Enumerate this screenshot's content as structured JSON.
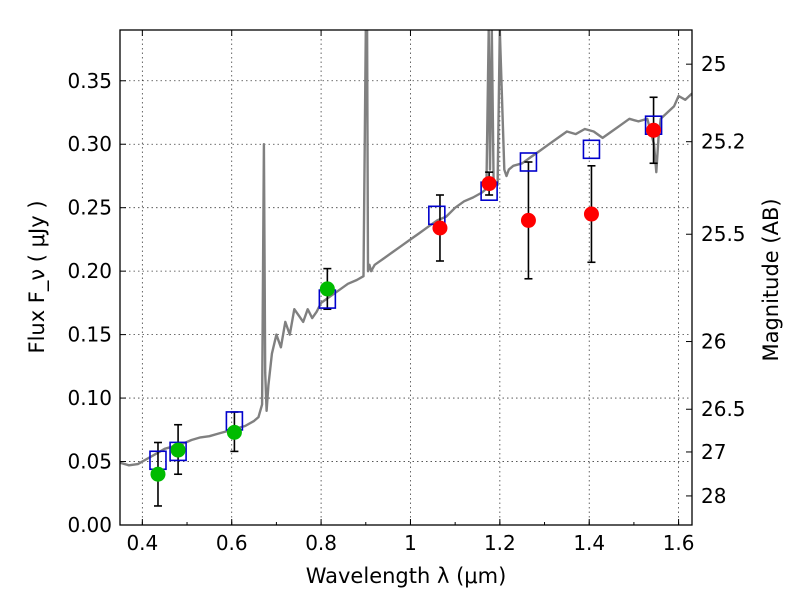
{
  "chart_data": {
    "type": "scatter",
    "xlabel": "Wavelength  λ (μm)",
    "ylabel": "Flux  F_ν  ( μJy )",
    "ylabel_right": "Magnitude (AB)",
    "xlim": [
      0.35,
      1.63
    ],
    "ylim": [
      0.0,
      0.39
    ],
    "grid": true,
    "x_ticks": [
      {
        "value": 0.4,
        "label": "0.4"
      },
      {
        "value": 0.6,
        "label": "0.6"
      },
      {
        "value": 0.8,
        "label": "0.8"
      },
      {
        "value": 1.0,
        "label": "1"
      },
      {
        "value": 1.2,
        "label": "1.2"
      },
      {
        "value": 1.4,
        "label": "1.4"
      },
      {
        "value": 1.6,
        "label": "1.6"
      }
    ],
    "y_ticks": [
      {
        "value": 0.0,
        "label": "0.00"
      },
      {
        "value": 0.05,
        "label": "0.05"
      },
      {
        "value": 0.1,
        "label": "0.10"
      },
      {
        "value": 0.15,
        "label": "0.15"
      },
      {
        "value": 0.2,
        "label": "0.20"
      },
      {
        "value": 0.25,
        "label": "0.25"
      },
      {
        "value": 0.3,
        "label": "0.30"
      },
      {
        "value": 0.35,
        "label": "0.35"
      }
    ],
    "right_ticks": [
      {
        "value": 25,
        "label": "25"
      },
      {
        "value": 25.2,
        "label": "25.2"
      },
      {
        "value": 25.5,
        "label": "25.5"
      },
      {
        "value": 26,
        "label": "26"
      },
      {
        "value": 26.5,
        "label": "26.5"
      },
      {
        "value": 27,
        "label": "27"
      },
      {
        "value": 28,
        "label": "28"
      }
    ],
    "series": [
      {
        "kind": "model_spectrum",
        "color": "#808080",
        "x": [
          0.35,
          0.37,
          0.39,
          0.41,
          0.43,
          0.45,
          0.47,
          0.49,
          0.51,
          0.53,
          0.55,
          0.57,
          0.59,
          0.61,
          0.63,
          0.65,
          0.66,
          0.668,
          0.672,
          0.675,
          0.678,
          0.682,
          0.69,
          0.7,
          0.71,
          0.72,
          0.73,
          0.74,
          0.75,
          0.76,
          0.77,
          0.78,
          0.79,
          0.8,
          0.82,
          0.84,
          0.86,
          0.88,
          0.895,
          0.9,
          0.903,
          0.905,
          0.908,
          0.912,
          0.92,
          0.94,
          0.96,
          0.98,
          1.0,
          1.02,
          1.04,
          1.06,
          1.08,
          1.1,
          1.12,
          1.14,
          1.16,
          1.17,
          1.175,
          1.178,
          1.182,
          1.186,
          1.19,
          1.195,
          1.2,
          1.21,
          1.215,
          1.22,
          1.23,
          1.25,
          1.27,
          1.29,
          1.31,
          1.33,
          1.35,
          1.37,
          1.39,
          1.41,
          1.43,
          1.45,
          1.47,
          1.49,
          1.51,
          1.53,
          1.545,
          1.55,
          1.555,
          1.56,
          1.575,
          1.59,
          1.6,
          1.615,
          1.63
        ],
        "y": [
          0.049,
          0.047,
          0.048,
          0.052,
          0.056,
          0.06,
          0.062,
          0.064,
          0.067,
          0.069,
          0.07,
          0.072,
          0.074,
          0.076,
          0.078,
          0.082,
          0.085,
          0.095,
          0.3,
          0.12,
          0.09,
          0.11,
          0.135,
          0.15,
          0.14,
          0.16,
          0.15,
          0.17,
          0.165,
          0.16,
          0.17,
          0.163,
          0.168,
          0.175,
          0.18,
          0.185,
          0.19,
          0.193,
          0.196,
          0.39,
          0.39,
          0.2,
          0.205,
          0.2,
          0.205,
          0.21,
          0.215,
          0.22,
          0.225,
          0.23,
          0.235,
          0.24,
          0.243,
          0.25,
          0.255,
          0.258,
          0.262,
          0.265,
          0.39,
          0.28,
          0.39,
          0.27,
          0.27,
          0.268,
          0.39,
          0.28,
          0.275,
          0.28,
          0.283,
          0.285,
          0.29,
          0.295,
          0.3,
          0.305,
          0.31,
          0.308,
          0.312,
          0.31,
          0.305,
          0.31,
          0.315,
          0.32,
          0.318,
          0.32,
          0.3,
          0.278,
          0.305,
          0.32,
          0.325,
          0.33,
          0.338,
          0.335,
          0.34
        ]
      },
      {
        "kind": "model_photometry",
        "marker": "open-square",
        "color": "#0000cc",
        "x": [
          0.435,
          0.48,
          0.606,
          0.814,
          1.059,
          1.176,
          1.264,
          1.405,
          1.544
        ],
        "y": [
          0.051,
          0.058,
          0.082,
          0.178,
          0.244,
          0.263,
          0.286,
          0.296,
          0.315
        ]
      },
      {
        "kind": "observed_optical",
        "marker": "filled-circle",
        "color": "#00bb00",
        "x": [
          0.435,
          0.48,
          0.606,
          0.814
        ],
        "y": [
          0.04,
          0.059,
          0.073,
          0.186
        ],
        "err_low": [
          0.025,
          0.019,
          0.015,
          0.016
        ],
        "err_high": [
          0.025,
          0.02,
          0.016,
          0.016
        ]
      },
      {
        "kind": "observed_nir",
        "marker": "filled-circle",
        "color": "#ff0000",
        "x": [
          1.066,
          1.176,
          1.264,
          1.405,
          1.544
        ],
        "y": [
          0.234,
          0.269,
          0.24,
          0.245,
          0.311
        ],
        "err_low": [
          0.026,
          0.009,
          0.046,
          0.038,
          0.026
        ],
        "err_high": [
          0.026,
          0.009,
          0.046,
          0.038,
          0.026
        ]
      }
    ]
  }
}
